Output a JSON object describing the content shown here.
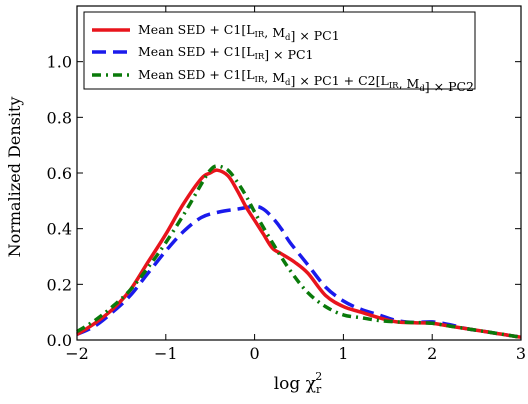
{
  "chart_data": {
    "type": "line",
    "xlabel": "log χ",
    "xlabel_sub": "r",
    "xlabel_sup": "2",
    "ylabel": "Normalized Density",
    "xlim": [
      -2,
      3
    ],
    "ylim": [
      0,
      1.2
    ],
    "xticks": [
      -2,
      -1,
      0,
      1,
      2,
      3
    ],
    "xtick_labels": [
      "−2",
      "−1",
      "0",
      "1",
      "2",
      "3"
    ],
    "yticks": [
      0.0,
      0.2,
      0.4,
      0.6,
      0.8,
      1.0
    ],
    "ytick_labels": [
      "0.0",
      "0.2",
      "0.4",
      "0.6",
      "0.8",
      "1.0"
    ],
    "grid": false,
    "legend_position": "top-left",
    "series": [
      {
        "name": "Mean SED + C1[L_IR, M_d] × PC1",
        "legend": {
          "p1": "Mean SED + C1[L",
          "s1": "IR",
          "p2": ", M",
          "s2": "d",
          "p3": "] × PC1"
        },
        "color": "#e8141c",
        "style": "solid",
        "x": [
          -2.0,
          -1.8,
          -1.6,
          -1.4,
          -1.2,
          -1.0,
          -0.8,
          -0.6,
          -0.5,
          -0.42,
          -0.3,
          -0.2,
          -0.1,
          0.0,
          0.1,
          0.2,
          0.3,
          0.45,
          0.6,
          0.8,
          1.0,
          1.2,
          1.4,
          1.6,
          1.8,
          2.0,
          2.2,
          2.4,
          2.6,
          2.8,
          3.0
        ],
        "y": [
          0.02,
          0.06,
          0.11,
          0.18,
          0.28,
          0.38,
          0.49,
          0.58,
          0.6,
          0.61,
          0.59,
          0.54,
          0.48,
          0.43,
          0.38,
          0.33,
          0.31,
          0.28,
          0.24,
          0.16,
          0.12,
          0.1,
          0.08,
          0.065,
          0.062,
          0.06,
          0.05,
          0.04,
          0.03,
          0.02,
          0.01
        ]
      },
      {
        "name": "Mean SED + C1[L_IR] × PC1",
        "legend": {
          "p1": "Mean SED + C1[L",
          "s1": "IR",
          "p2": "] × PC1",
          "s2": "",
          "p3": ""
        },
        "color": "#1a1aec",
        "style": "dashed",
        "x": [
          -2.0,
          -1.8,
          -1.6,
          -1.4,
          -1.2,
          -1.0,
          -0.8,
          -0.6,
          -0.4,
          -0.2,
          0.0,
          0.1,
          0.2,
          0.3,
          0.4,
          0.6,
          0.8,
          1.0,
          1.2,
          1.4,
          1.6,
          1.8,
          2.0,
          2.2,
          2.4,
          2.6,
          2.8,
          3.0
        ],
        "y": [
          0.02,
          0.05,
          0.1,
          0.16,
          0.24,
          0.32,
          0.39,
          0.44,
          0.46,
          0.47,
          0.48,
          0.47,
          0.44,
          0.4,
          0.35,
          0.27,
          0.19,
          0.14,
          0.11,
          0.09,
          0.07,
          0.063,
          0.065,
          0.055,
          0.04,
          0.03,
          0.02,
          0.01
        ]
      },
      {
        "name": "Mean SED + C1[L_IR, M_d] × PC1 + C2[L_IR, M_d] × PC2",
        "legend": {
          "p1": "Mean SED + C1[L",
          "s1": "IR",
          "p2": ", M",
          "s2": "d",
          "p3": "] × PC1 + C2[L",
          "s3": "IR",
          "p4": ", M",
          "s4": "d",
          "p5": "] × PC2"
        },
        "color": "#0a7a0a",
        "style": "dashdot",
        "x": [
          -2.0,
          -1.8,
          -1.6,
          -1.4,
          -1.2,
          -1.0,
          -0.8,
          -0.6,
          -0.5,
          -0.42,
          -0.3,
          -0.2,
          -0.1,
          0.0,
          0.2,
          0.4,
          0.6,
          0.8,
          1.0,
          1.2,
          1.4,
          1.6,
          1.8,
          2.0,
          2.2,
          2.4,
          2.6,
          2.8,
          3.0
        ],
        "y": [
          0.03,
          0.07,
          0.12,
          0.18,
          0.26,
          0.35,
          0.45,
          0.56,
          0.61,
          0.625,
          0.61,
          0.57,
          0.52,
          0.46,
          0.35,
          0.25,
          0.17,
          0.12,
          0.09,
          0.08,
          0.07,
          0.065,
          0.063,
          0.06,
          0.05,
          0.04,
          0.03,
          0.02,
          0.01
        ]
      }
    ]
  }
}
